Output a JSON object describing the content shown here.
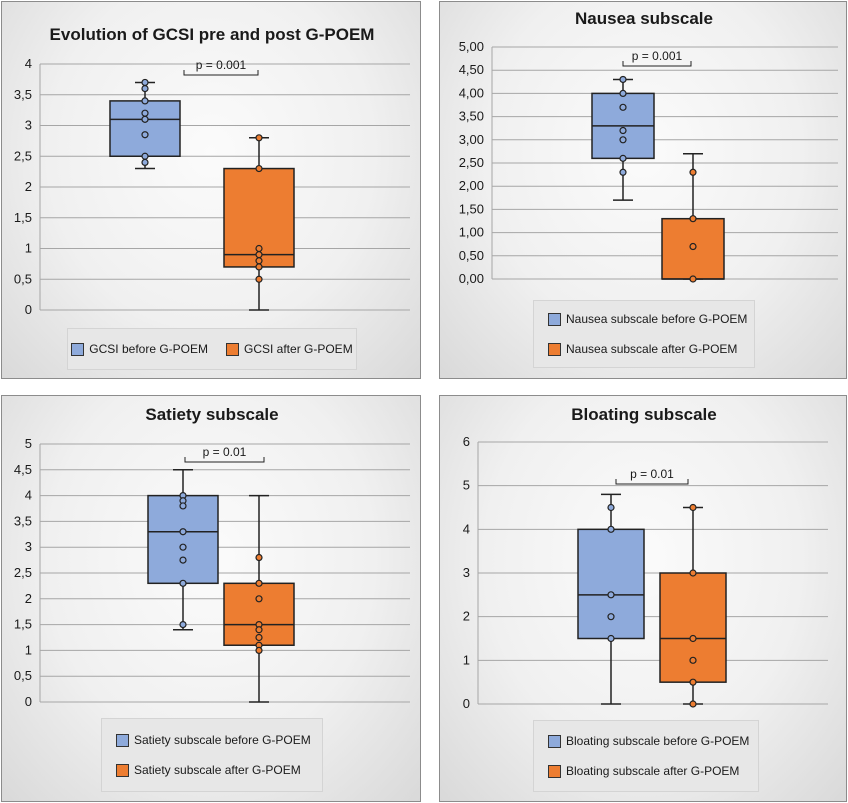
{
  "colors": {
    "before": "#8eaadb",
    "after": "#ed7d31",
    "outline": "#222222",
    "grid": "#a6a6a6"
  },
  "chart_data": [
    {
      "type": "boxplot",
      "title": "Evolution of GCSI pre and post G-POEM",
      "ylim": [
        0,
        4
      ],
      "yticks": [
        "0",
        "0,5",
        "1",
        "1,5",
        "2",
        "2,5",
        "3",
        "3,5",
        "4"
      ],
      "ytick_values": [
        0,
        0.5,
        1,
        1.5,
        2,
        2.5,
        3,
        3.5,
        4
      ],
      "annotation": "p = 0.001",
      "legend_layout": "row",
      "series": [
        {
          "name": "GCSI before G-POEM",
          "min": 2.3,
          "q1": 2.5,
          "median": 3.1,
          "q3": 3.4,
          "max": 3.7,
          "points": [
            3.7,
            3.6,
            3.4,
            3.2,
            3.1,
            2.85,
            2.5,
            2.4
          ]
        },
        {
          "name": "GCSI after G-POEM",
          "min": 0,
          "q1": 0.7,
          "median": 0.9,
          "q3": 2.3,
          "max": 2.8,
          "points": [
            2.8,
            2.3,
            1.0,
            0.9,
            0.8,
            0.7,
            0.5
          ]
        }
      ]
    },
    {
      "type": "boxplot",
      "title": "Nausea subscale",
      "ylim": [
        0,
        5
      ],
      "yticks": [
        "0,00",
        "0,50",
        "1,00",
        "1,50",
        "2,00",
        "2,50",
        "3,00",
        "3,50",
        "4,00",
        "4,50",
        "5,00"
      ],
      "ytick_values": [
        0,
        0.5,
        1,
        1.5,
        2,
        2.5,
        3,
        3.5,
        4,
        4.5,
        5
      ],
      "annotation": "p = 0.001",
      "legend_layout": "column",
      "series": [
        {
          "name": "Nausea subscale before G-POEM",
          "min": 1.7,
          "q1": 2.6,
          "median": 3.3,
          "q3": 4.0,
          "max": 4.3,
          "points": [
            4.3,
            4.0,
            3.7,
            3.2,
            3.0,
            2.6,
            2.3
          ]
        },
        {
          "name": "Nausea subscale after G-POEM",
          "min": 0,
          "q1": 0,
          "median": 0,
          "q3": 1.3,
          "max": 2.7,
          "points": [
            2.3,
            1.3,
            0.7,
            0
          ]
        }
      ]
    },
    {
      "type": "boxplot",
      "title": "Satiety subscale",
      "ylim": [
        0,
        5
      ],
      "yticks": [
        "0",
        "0,5",
        "1",
        "1,5",
        "2",
        "2,5",
        "3",
        "3,5",
        "4",
        "4,5",
        "5"
      ],
      "ytick_values": [
        0,
        0.5,
        1,
        1.5,
        2,
        2.5,
        3,
        3.5,
        4,
        4.5,
        5
      ],
      "annotation": "p = 0.01",
      "legend_layout": "column",
      "series": [
        {
          "name": "Satiety subscale before G-POEM",
          "min": 1.4,
          "q1": 2.3,
          "median": 3.3,
          "q3": 4.0,
          "max": 4.5,
          "points": [
            4.0,
            3.9,
            3.8,
            3.3,
            3.0,
            2.75,
            2.3,
            1.5
          ]
        },
        {
          "name": "Satiety subscale after G-POEM",
          "min": 0,
          "q1": 1.1,
          "median": 1.5,
          "q3": 2.3,
          "max": 4.0,
          "points": [
            2.8,
            2.3,
            2.0,
            1.5,
            1.4,
            1.25,
            1.1,
            1.0
          ]
        }
      ]
    },
    {
      "type": "boxplot",
      "title": "Bloating subscale",
      "ylim": [
        0,
        6
      ],
      "yticks": [
        "0",
        "1",
        "2",
        "3",
        "4",
        "5",
        "6"
      ],
      "ytick_values": [
        0,
        1,
        2,
        3,
        4,
        5,
        6
      ],
      "annotation": "p = 0.01",
      "legend_layout": "column",
      "series": [
        {
          "name": "Bloating subscale before G-POEM",
          "min": 0,
          "q1": 1.5,
          "median": 2.5,
          "q3": 4.0,
          "max": 4.8,
          "points": [
            4.5,
            4.0,
            2.5,
            2.0,
            1.5
          ]
        },
        {
          "name": "Bloating subscale after G-POEM",
          "min": 0,
          "q1": 0.5,
          "median": 1.5,
          "q3": 3.0,
          "max": 4.5,
          "points": [
            4.5,
            3.0,
            1.5,
            1.0,
            0.5,
            0
          ]
        }
      ]
    }
  ]
}
